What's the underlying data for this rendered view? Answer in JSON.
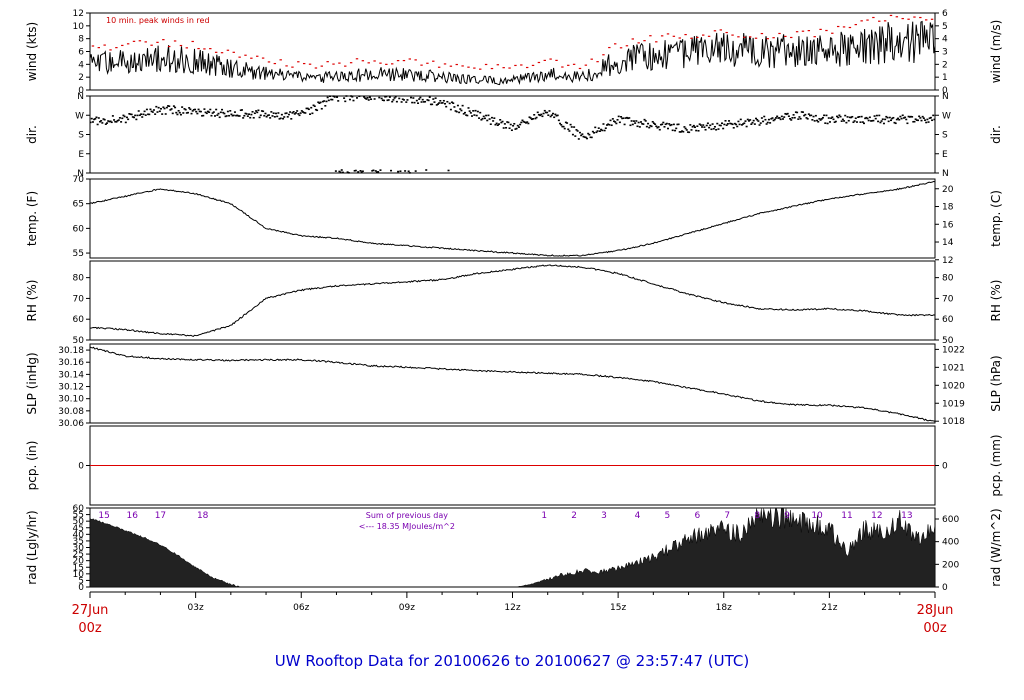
{
  "title": "UW Rooftop Data for 20100626  to  20100627 @ 23:57:47  (UTC)",
  "x_axis": {
    "ticks": [
      "03z",
      "06z",
      "09z",
      "12z",
      "15z",
      "18z",
      "21z"
    ],
    "start": {
      "date": "27Jun",
      "hour": "00z"
    },
    "end": {
      "date": "28Jun",
      "hour": "00z"
    }
  },
  "colors": {
    "series": "#000000",
    "peak": "#dd0000",
    "precip": "#dd0000",
    "note": "#7a00b0",
    "footer": "#0000cc"
  },
  "chart_data": [
    {
      "type": "line",
      "id": "wind",
      "ylabel": "wind (kts)",
      "ylabel_right": "wind (m/s)",
      "ylim": [
        0,
        12
      ],
      "yticks": [
        0,
        2,
        4,
        6,
        8,
        10,
        12
      ],
      "right_ylim": [
        0,
        6
      ],
      "right_yticks": [
        0,
        1,
        2,
        3,
        4,
        5,
        6
      ],
      "annotation": "10 min. peak winds in red",
      "x_hours": [
        0,
        1,
        2,
        3,
        4,
        5,
        6,
        7,
        8,
        9,
        10,
        11,
        12,
        13,
        14,
        15,
        16,
        17,
        18,
        19,
        20,
        21,
        22,
        23,
        24
      ],
      "y": [
        4,
        4.5,
        5,
        4.5,
        3.5,
        2.5,
        2,
        2,
        2.5,
        2.5,
        2,
        1.5,
        1.5,
        2.5,
        2,
        4.5,
        5.5,
        6,
        6.5,
        6,
        6,
        6,
        7,
        7.5,
        7.5
      ],
      "peak_y": [
        6.5,
        7,
        7.5,
        7,
        6,
        4.5,
        4,
        4,
        4.5,
        4.5,
        4,
        3.5,
        3.5,
        4.5,
        3.5,
        7,
        8,
        8.5,
        9,
        8.5,
        8.5,
        9,
        10.5,
        11.5,
        11.5
      ]
    },
    {
      "type": "scatter",
      "id": "dir",
      "ylabel": "dir.",
      "ylabel_right": "dir.",
      "categories": [
        "N",
        "E",
        "S",
        "W",
        "N"
      ],
      "ylim": [
        0,
        360
      ],
      "x_hours": [
        0,
        1,
        2,
        3,
        4,
        5,
        6,
        7,
        8,
        9,
        10,
        11,
        12,
        13,
        14,
        15,
        16,
        17,
        18,
        19,
        20,
        21,
        22,
        23,
        24
      ],
      "y": [
        240,
        255,
        295,
        290,
        275,
        275,
        270,
        355,
        355,
        350,
        330,
        270,
        210,
        285,
        165,
        250,
        225,
        205,
        225,
        240,
        270,
        250,
        250,
        250,
        250
      ]
    },
    {
      "type": "line",
      "id": "temp",
      "ylabel": "temp. (F)",
      "ylabel_right": "temp. (C)",
      "ylim": [
        54,
        70
      ],
      "yticks": [
        55,
        60,
        65,
        70
      ],
      "right_ylim": [
        12.2,
        21.1
      ],
      "right_yticks": [
        12,
        14,
        16,
        18,
        20
      ],
      "x_hours": [
        0,
        1,
        2,
        3,
        4,
        5,
        6,
        7,
        8,
        9,
        10,
        11,
        12,
        13,
        14,
        15,
        16,
        17,
        18,
        19,
        20,
        21,
        22,
        23,
        24
      ],
      "y": [
        65,
        66.5,
        68,
        67,
        65,
        60,
        58.5,
        58,
        57,
        56.5,
        56,
        55.5,
        55,
        54.5,
        54.5,
        55.5,
        57,
        59,
        61,
        63,
        64.5,
        66,
        67,
        68,
        69.5
      ]
    },
    {
      "type": "line",
      "id": "rh",
      "ylabel": "RH (%)",
      "ylabel_right": "RH (%)",
      "ylim": [
        50,
        88
      ],
      "yticks": [
        50,
        60,
        70,
        80
      ],
      "right_ylim": [
        50,
        88
      ],
      "right_yticks": [
        50,
        60,
        70,
        80
      ],
      "x_hours": [
        0,
        1,
        2,
        3,
        4,
        5,
        6,
        7,
        8,
        9,
        10,
        11,
        12,
        13,
        14,
        15,
        16,
        17,
        18,
        19,
        20,
        21,
        22,
        23,
        24
      ],
      "y": [
        56,
        55,
        53,
        52,
        57,
        70,
        74,
        76,
        77,
        78,
        79,
        82,
        84,
        86,
        85,
        82,
        77,
        72,
        68,
        65,
        64.5,
        65,
        64,
        62,
        62
      ]
    },
    {
      "type": "line",
      "id": "slp",
      "ylabel": "SLP (inHg)",
      "ylabel_right": "SLP (hPa)",
      "ylim": [
        30.06,
        30.19
      ],
      "yticks": [
        30.06,
        30.08,
        30.1,
        30.12,
        30.14,
        30.16,
        30.18
      ],
      "right_ylim": [
        1017.9,
        1022.3
      ],
      "right_yticks": [
        1018,
        1019,
        1020,
        1021,
        1022
      ],
      "x_hours": [
        0,
        1,
        2,
        3,
        4,
        5,
        6,
        7,
        8,
        9,
        10,
        11,
        12,
        13,
        14,
        15,
        16,
        17,
        18,
        19,
        20,
        21,
        22,
        23,
        24
      ],
      "y": [
        30.185,
        30.17,
        30.166,
        30.164,
        30.163,
        30.164,
        30.164,
        30.16,
        30.154,
        30.152,
        30.149,
        30.146,
        30.144,
        30.142,
        30.14,
        30.135,
        30.128,
        30.118,
        30.108,
        30.096,
        30.09,
        30.089,
        30.085,
        30.075,
        30.062
      ]
    },
    {
      "type": "line",
      "id": "pcp",
      "ylabel": "pcp. (in)",
      "ylabel_right": "pcp. (mm)",
      "ylim": [
        -1,
        1
      ],
      "yticks": [
        0
      ],
      "right_yticks": [
        0
      ],
      "x_hours": [
        0,
        24
      ],
      "y": [
        0,
        0
      ]
    },
    {
      "type": "area",
      "id": "rad",
      "ylabel": "rad (Lgly/hr)",
      "ylabel_right": "rad (W/m^2)",
      "ylim": [
        0,
        60
      ],
      "yticks": [
        0,
        5,
        10,
        15,
        20,
        25,
        30,
        35,
        40,
        45,
        50,
        55,
        60
      ],
      "right_ylim": [
        0,
        697
      ],
      "right_yticks": [
        0,
        200,
        400,
        600
      ],
      "note_lines": [
        "Sum of previous day",
        "<--- 18.35 MJoules/m^2"
      ],
      "hour_labels_left": [
        "15",
        "16",
        "17",
        "18"
      ],
      "hour_labels_right": [
        "1",
        "2",
        "3",
        "4",
        "5",
        "6",
        "7",
        "8",
        "9",
        "10",
        "11",
        "12",
        "13"
      ],
      "x_hours": [
        0,
        0.5,
        1,
        1.5,
        2,
        2.5,
        3,
        3.5,
        4,
        4.3,
        12.1,
        12.5,
        13,
        13.5,
        14,
        14.5,
        15,
        15.5,
        16,
        16.5,
        17,
        17.5,
        18,
        18.5,
        19,
        19.5,
        20,
        20.5,
        21,
        21.5,
        22,
        22.5,
        23,
        23.5,
        24
      ],
      "y": [
        52,
        48,
        43,
        38,
        32,
        24,
        15,
        7,
        2,
        0,
        0,
        2,
        6,
        10,
        12,
        12,
        14,
        18,
        23,
        29,
        36,
        42,
        44,
        40,
        55,
        54,
        50,
        48,
        44,
        26,
        44,
        40,
        52,
        36,
        44
      ]
    }
  ]
}
